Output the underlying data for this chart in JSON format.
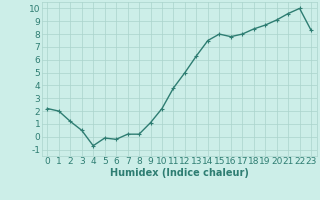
{
  "x": [
    0,
    1,
    2,
    3,
    4,
    5,
    6,
    7,
    8,
    9,
    10,
    11,
    12,
    13,
    14,
    15,
    16,
    17,
    18,
    19,
    20,
    21,
    22,
    23
  ],
  "y": [
    2.2,
    2.0,
    1.2,
    0.5,
    -0.7,
    -0.1,
    -0.2,
    0.2,
    0.2,
    1.1,
    2.2,
    3.8,
    5.0,
    6.3,
    7.5,
    8.0,
    7.8,
    8.0,
    8.4,
    8.7,
    9.1,
    9.6,
    10.0,
    8.3
  ],
  "line_color": "#2e7d72",
  "marker": "+",
  "marker_size": 3,
  "linewidth": 1.0,
  "xlabel": "Humidex (Indice chaleur)",
  "xlabel_fontsize": 7,
  "xlabel_color": "#2e7d72",
  "ylabel_ticks": [
    -1,
    0,
    1,
    2,
    3,
    4,
    5,
    6,
    7,
    8,
    9,
    10
  ],
  "xtick_labels": [
    "0",
    "1",
    "2",
    "3",
    "4",
    "5",
    "6",
    "7",
    "8",
    "9",
    "10",
    "11",
    "12",
    "13",
    "14",
    "15",
    "16",
    "17",
    "18",
    "19",
    "20",
    "21",
    "22",
    "23"
  ],
  "ylim": [
    -1.5,
    10.5
  ],
  "xlim": [
    -0.5,
    23.5
  ],
  "background_color": "#cceee8",
  "grid_color": "#aad4cc",
  "tick_color": "#2e7d72",
  "tick_fontsize": 6.5
}
